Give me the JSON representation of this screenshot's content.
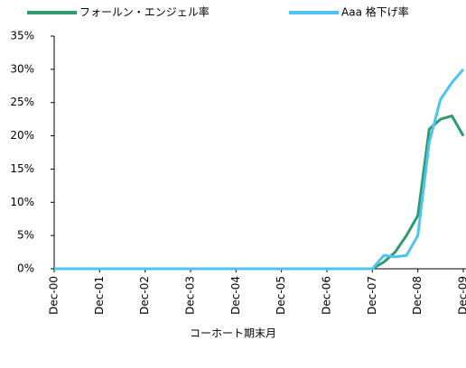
{
  "chart_data": {
    "type": "line",
    "x_label": "コーホート期末月",
    "categories": [
      "Dec-00",
      null,
      null,
      null,
      "Dec-01",
      null,
      null,
      null,
      "Dec-02",
      null,
      null,
      null,
      "Dec-03",
      null,
      null,
      null,
      "Dec-04",
      null,
      null,
      null,
      "Dec-05",
      null,
      null,
      null,
      "Dec-06",
      null,
      null,
      null,
      "Dec-07",
      null,
      null,
      null,
      "Dec-08",
      null,
      null,
      null,
      "Dec-09"
    ],
    "series": [
      {
        "name": "フォールン・エンジェル率",
        "color": "#2e9a6e",
        "values": [
          0,
          0,
          0,
          0,
          0,
          0,
          0,
          0,
          0,
          0,
          0,
          0,
          0,
          0,
          0,
          0,
          0,
          0,
          0,
          0,
          0,
          0,
          0,
          0,
          0,
          0,
          0,
          0,
          0,
          1,
          2.5,
          5,
          8,
          21,
          22.5,
          23,
          20
        ]
      },
      {
        "name": "Aaa 格下げ率",
        "color": "#4dc3ef",
        "values": [
          0,
          0,
          0,
          0,
          0,
          0,
          0,
          0,
          0,
          0,
          0,
          0,
          0,
          0,
          0,
          0,
          0,
          0,
          0,
          0,
          0,
          0,
          0,
          0,
          0,
          0,
          0,
          0,
          0,
          2,
          1.8,
          2,
          5,
          19,
          25.5,
          28,
          30
        ]
      }
    ],
    "ylim": [
      0,
      35
    ],
    "yticks": [
      {
        "value": 0,
        "label": "0%"
      },
      {
        "value": 5,
        "label": "5%"
      },
      {
        "value": 10,
        "label": "10%"
      },
      {
        "value": 15,
        "label": "15%"
      },
      {
        "value": 20,
        "label": "20%"
      },
      {
        "value": 25,
        "label": "25%"
      },
      {
        "value": 30,
        "label": "30%"
      },
      {
        "value": 35,
        "label": "35%"
      }
    ],
    "legend": "top"
  }
}
